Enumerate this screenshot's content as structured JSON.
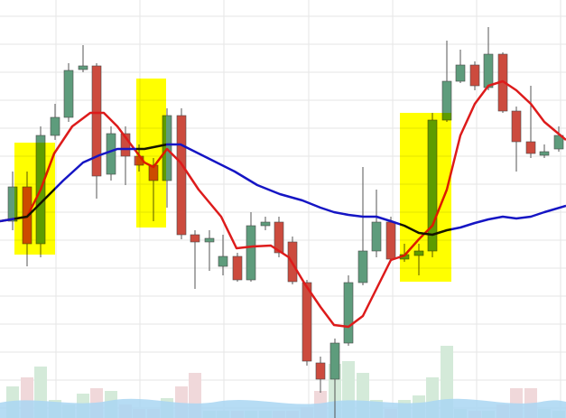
{
  "chart_data": {
    "type": "candlestick",
    "xlim": [
      0,
      627
    ],
    "ylim": [
      0,
      463
    ],
    "xticks": [
      62,
      155,
      248,
      342,
      435,
      528,
      621
    ],
    "yticks": [
      445,
      414,
      383,
      352,
      321,
      290,
      259,
      228,
      197,
      166,
      135,
      104,
      73,
      42,
      11
    ],
    "grid": true,
    "up_color": "#5e9c7c",
    "down_color": "#cc4b3e",
    "volume_up_color": "#d4ead9",
    "volume_down_color": "#f0d8da",
    "x": [
      14,
      30,
      45,
      61,
      76,
      92,
      107,
      123,
      139,
      154,
      170,
      185,
      201,
      216,
      232,
      247,
      263,
      278,
      294,
      309,
      324,
      340,
      355,
      371,
      386,
      402,
      417,
      433,
      448,
      464,
      479,
      495,
      510,
      526,
      541,
      557,
      572,
      588,
      603,
      619
    ],
    "open": [
      218,
      256,
      193,
      313,
      333,
      386,
      390,
      270,
      315,
      290,
      280,
      263,
      335,
      203,
      195,
      168,
      179,
      153,
      213,
      217,
      195,
      150,
      61,
      43,
      83,
      150,
      185,
      217,
      176,
      180,
      185,
      330,
      373,
      391,
      366,
      403,
      340,
      306,
      291,
      298
    ],
    "high": [
      273,
      273,
      323,
      348,
      393,
      413,
      393,
      323,
      323,
      303,
      288,
      343,
      343,
      208,
      208,
      203,
      183,
      228,
      223,
      223,
      201,
      153,
      68,
      88,
      158,
      278,
      253,
      223,
      193,
      193,
      338,
      418,
      408,
      395,
      433,
      405,
      345,
      368,
      303,
      323
    ],
    "low": [
      208,
      168,
      178,
      308,
      328,
      383,
      243,
      263,
      258,
      273,
      218,
      233,
      198,
      143,
      163,
      158,
      151,
      151,
      208,
      178,
      148,
      58,
      28,
      0,
      80,
      147,
      178,
      173,
      173,
      158,
      178,
      328,
      371,
      363,
      363,
      338,
      273,
      288,
      288,
      295
    ],
    "close": [
      256,
      193,
      313,
      333,
      385,
      390,
      268,
      315,
      290,
      280,
      263,
      335,
      203,
      195,
      199,
      179,
      153,
      213,
      217,
      183,
      151,
      63,
      43,
      83,
      150,
      185,
      217,
      176,
      181,
      185,
      330,
      373,
      391,
      368,
      403,
      340,
      306,
      293,
      295,
      313
    ],
    "volume": [
      35,
      45,
      57,
      20,
      15,
      27,
      33,
      30,
      15,
      10,
      10,
      22,
      35,
      50,
      8,
      8,
      8,
      8,
      8,
      8,
      8,
      12,
      30,
      60,
      63,
      50,
      20,
      10,
      20,
      25,
      45,
      80,
      10,
      8,
      8,
      15,
      33,
      33,
      10,
      8
    ],
    "series": [
      {
        "color": "#dd1b1b",
        "x": [
          0,
          30,
          45,
          60,
          80,
          100,
          115,
          130,
          145,
          160,
          170,
          185,
          200,
          220,
          245,
          262,
          280,
          300,
          320,
          338,
          355,
          370,
          386,
          402,
          417,
          433,
          448,
          464,
          479,
          495,
          510,
          526,
          541,
          557,
          572,
          588,
          603,
          627
        ],
        "values": [
          218,
          223,
          253,
          293,
          323,
          338,
          338,
          323,
          303,
          283,
          278,
          298,
          283,
          253,
          223,
          188,
          190,
          191,
          178,
          148,
          123,
          103,
          101,
          113,
          143,
          175,
          180,
          198,
          213,
          253,
          313,
          348,
          368,
          373,
          363,
          348,
          328,
          308
        ]
      },
      {
        "color": "#1515c4",
        "x": [
          0,
          30,
          50,
          70,
          92,
          110,
          130,
          160,
          185,
          200,
          230,
          260,
          285,
          310,
          335,
          355,
          370,
          386,
          402,
          417,
          433,
          448,
          464,
          479,
          495,
          510,
          526,
          541,
          557,
          572,
          588,
          603,
          627
        ],
        "values": [
          218,
          223,
          243,
          263,
          283,
          291,
          298,
          298,
          303,
          303,
          288,
          273,
          258,
          248,
          241,
          233,
          228,
          225,
          223,
          223,
          218,
          213,
          205,
          203,
          208,
          211,
          216,
          220,
          223,
          221,
          223,
          228,
          235
        ]
      }
    ]
  }
}
